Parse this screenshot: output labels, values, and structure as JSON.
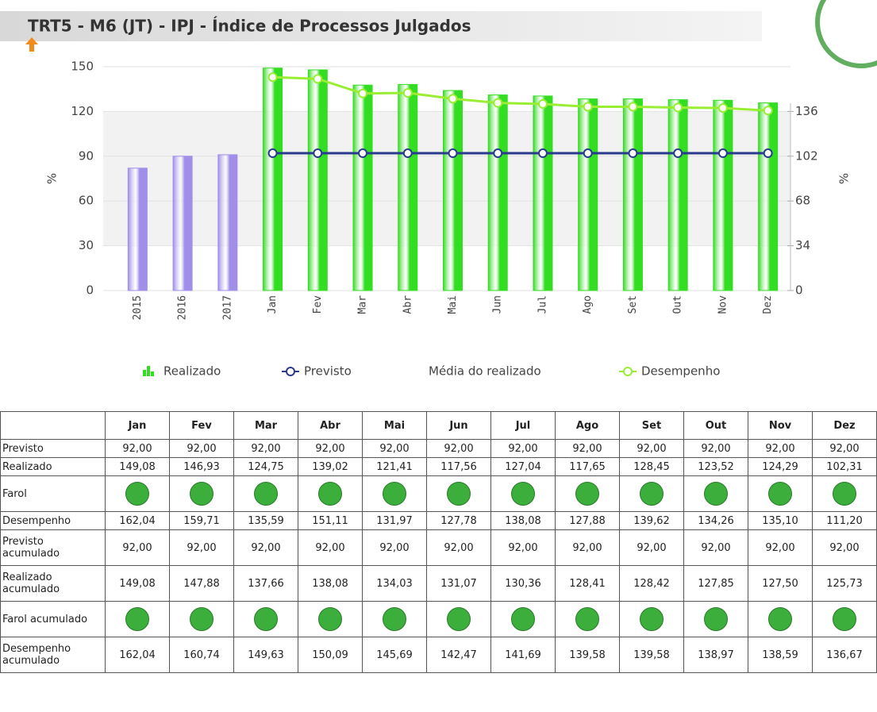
{
  "chart_data": {
    "type": "bar",
    "title": "TRT5 - M6 (JT) - IPJ - Índice de Processos Julgados",
    "ylabel": "%",
    "y2label": "%",
    "categories": [
      "2015",
      "2016",
      "2017",
      "Jan",
      "Fev",
      "Mar",
      "Abr",
      "Mai",
      "Jun",
      "Jul",
      "Ago",
      "Set",
      "Out",
      "Nov",
      "Dez"
    ],
    "ylim": [
      0,
      150
    ],
    "yticks": [
      0,
      30,
      60,
      90,
      120,
      150
    ],
    "y2lim": [
      0,
      170
    ],
    "y2ticks": [
      0,
      34,
      68,
      102,
      136
    ],
    "series": [
      {
        "name": "Realizado",
        "type": "bar",
        "color": "#33dd22",
        "colors": [
          "#a08ee8",
          "#a08ee8",
          "#a08ee8",
          "#33dd22",
          "#33dd22",
          "#33dd22",
          "#33dd22",
          "#33dd22",
          "#33dd22",
          "#33dd22",
          "#33dd22",
          "#33dd22",
          "#33dd22",
          "#33dd22",
          "#33dd22"
        ],
        "values": [
          82,
          90,
          91,
          149.08,
          147.88,
          137.66,
          138.08,
          134.03,
          131.07,
          130.36,
          128.41,
          128.42,
          127.85,
          127.5,
          125.73
        ]
      },
      {
        "name": "Previsto",
        "type": "line",
        "color": "#2a3a8c",
        "values": [
          null,
          null,
          null,
          92,
          92,
          92,
          92,
          92,
          92,
          92,
          92,
          92,
          92,
          92,
          92
        ]
      },
      {
        "name": "Média do realizado",
        "type": "none",
        "color": "#999999",
        "values": [
          null,
          null,
          null,
          null,
          null,
          null,
          null,
          null,
          null,
          null,
          null,
          null,
          null,
          null,
          null
        ]
      },
      {
        "name": "Desempenho",
        "type": "line",
        "axis": "y2",
        "color": "#99ee33",
        "values": [
          null,
          null,
          null,
          162.04,
          160.74,
          149.63,
          150.09,
          145.69,
          142.47,
          141.69,
          139.58,
          139.58,
          138.97,
          138.59,
          136.67
        ]
      }
    ]
  },
  "table": {
    "header": [
      "Jan",
      "Fev",
      "Mar",
      "Abr",
      "Mai",
      "Jun",
      "Jul",
      "Ago",
      "Set",
      "Out",
      "Nov",
      "Dez"
    ],
    "lamp_color": "#3cae3c",
    "rows": [
      {
        "label": "Previsto",
        "values": [
          "92,00",
          "92,00",
          "92,00",
          "92,00",
          "92,00",
          "92,00",
          "92,00",
          "92,00",
          "92,00",
          "92,00",
          "92,00",
          "92,00"
        ]
      },
      {
        "label": "Realizado",
        "values": [
          "149,08",
          "146,93",
          "124,75",
          "139,02",
          "121,41",
          "117,56",
          "127,04",
          "117,65",
          "128,45",
          "123,52",
          "124,29",
          "102,31"
        ]
      },
      {
        "label": "Farol",
        "lamp": true
      },
      {
        "label": "Desempenho",
        "values": [
          "162,04",
          "159,71",
          "135,59",
          "151,11",
          "131,97",
          "127,78",
          "138,08",
          "127,88",
          "139,62",
          "134,26",
          "135,10",
          "111,20"
        ]
      },
      {
        "label": "Previsto acumulado",
        "values": [
          "92,00",
          "92,00",
          "92,00",
          "92,00",
          "92,00",
          "92,00",
          "92,00",
          "92,00",
          "92,00",
          "92,00",
          "92,00",
          "92,00"
        ]
      },
      {
        "label": "Realizado acumulado",
        "values": [
          "149,08",
          "147,88",
          "137,66",
          "138,08",
          "134,03",
          "131,07",
          "130,36",
          "128,41",
          "128,42",
          "127,85",
          "127,50",
          "125,73"
        ]
      },
      {
        "label": "Farol acumulado",
        "lamp": true
      },
      {
        "label": "Desempenho acumulado",
        "values": [
          "162,04",
          "160,74",
          "149,63",
          "150,09",
          "145,69",
          "142,47",
          "141,69",
          "139,58",
          "139,58",
          "138,97",
          "138,59",
          "136,67"
        ]
      }
    ]
  }
}
